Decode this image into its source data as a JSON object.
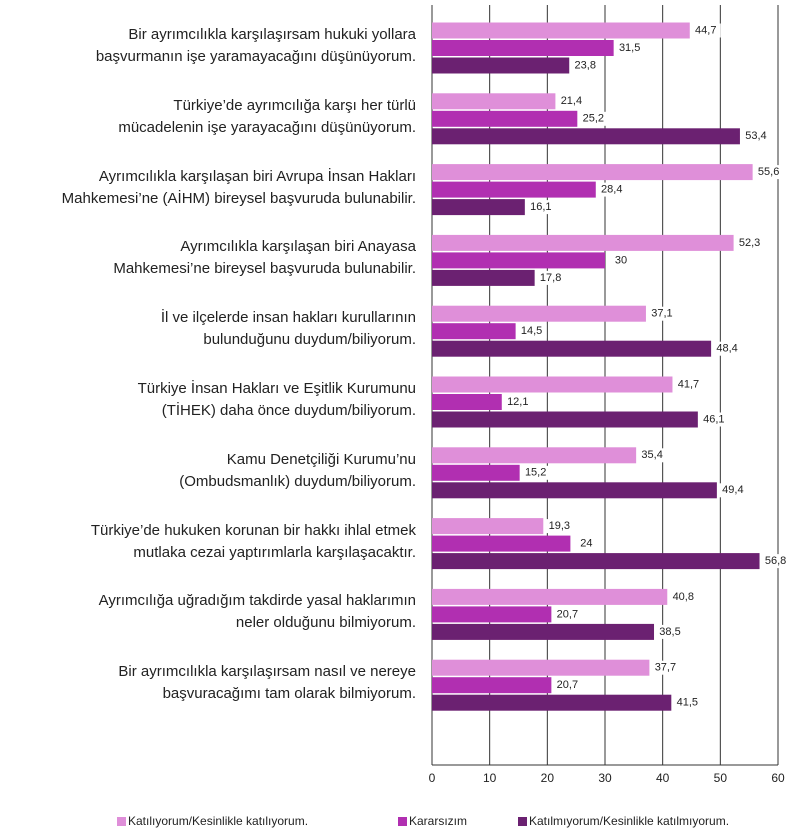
{
  "chart_data": {
    "type": "barh",
    "categories": [
      "Bir ayrımcılıkla karşılaşırsam hukuki yollara\nbaşvurmanın işe yaramayacağını düşünüyorum.",
      "Türkiye’de ayrımcılığa karşı her türlü\nmücadelenin işe yarayacağını düşünüyorum.",
      "Ayrımcılıkla karşılaşan biri Avrupa İnsan Hakları\nMahkemesi’ne (AİHM) bireysel başvuruda bulunabilir.",
      "Ayrımcılıkla karşılaşan biri Anayasa\nMahkemesi’ne bireysel başvuruda bulunabilir.",
      "İl ve ilçelerde insan hakları kurullarının\nbulunduğunu duydum/biliyorum.",
      "Türkiye İnsan Hakları ve Eşitlik Kurumunu\n(TİHEK) daha önce duydum/biliyorum.",
      "Kamu Denetçiliği Kurumu’nu\n(Ombudsmanlık) duydum/biliyorum.",
      "Türkiye’de hukuken korunan bir hakkı ihlal etmek\nmutlaka cezai yaptırımlarla karşılaşacaktır.",
      "Ayrımcılığa uğradığım takdirde yasal haklarımın\nneler olduğunu bilmiyorum.",
      "Bir ayrımcılıkla karşılaşırsam nasıl ve nereye\nbaşvuracağımı tam olarak bilmiyorum."
    ],
    "series": [
      {
        "name": "Katılıyorum/Kesinlikle katılıyorum.",
        "color": "#df8fd9",
        "values": [
          44.7,
          21.4,
          55.6,
          52.3,
          37.1,
          41.7,
          35.4,
          19.3,
          40.8,
          37.7
        ],
        "value_labels": [
          "44,7",
          "21,4",
          "55,6",
          "52,3",
          "37,1",
          "41,7",
          "35,4",
          "19,3",
          "40,8",
          "37,7"
        ]
      },
      {
        "name": "Kararsızım",
        "color": "#b12fb1",
        "values": [
          31.5,
          25.2,
          28.4,
          30,
          14.5,
          12.1,
          15.2,
          24,
          20.7,
          20.7
        ],
        "value_labels": [
          "31,5",
          "25,2",
          "28,4",
          "30",
          "14,5",
          "12,1",
          "15,2",
          "24",
          "20,7",
          "20,7"
        ]
      },
      {
        "name": "Katılmıyorum/Kesinlikle katılmıyorum.",
        "color": "#6b2171",
        "values": [
          23.8,
          53.4,
          16.1,
          17.8,
          48.4,
          46.1,
          49.4,
          56.8,
          38.5,
          41.5
        ],
        "value_labels": [
          "23,8",
          "53,4",
          "16,1",
          "17,8",
          "48,4",
          "46,1",
          "49,4",
          "56,8",
          "38,5",
          "41,5"
        ]
      }
    ],
    "xlim": [
      0,
      60
    ],
    "xticks": [
      0,
      10,
      20,
      30,
      40,
      50,
      60
    ],
    "grid": true,
    "legend": "bottom"
  }
}
